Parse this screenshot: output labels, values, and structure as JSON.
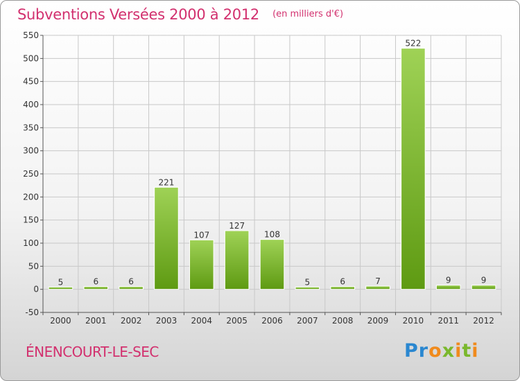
{
  "header": {
    "title": "Subventions Versées 2000 à 2012",
    "unit": "(en milliers d'€)"
  },
  "footer": {
    "commune": "ÉNENCOURT-LE-SEC",
    "logo": "Proxiti"
  },
  "colors": {
    "title": "#d2306e",
    "bar_light": "#9fd256",
    "bar_dark": "#5e9a12",
    "grid": "#c8c8c8"
  },
  "chart_data": {
    "type": "bar",
    "title": "Subventions Versées 2000 à 2012",
    "xlabel": "",
    "ylabel": "",
    "categories": [
      "2000",
      "2001",
      "2002",
      "2003",
      "2004",
      "2005",
      "2006",
      "2007",
      "2008",
      "2009",
      "2010",
      "2011",
      "2012"
    ],
    "values": [
      5,
      6,
      6,
      221,
      107,
      127,
      108,
      5,
      6,
      7,
      522,
      9,
      9
    ],
    "ylim": [
      -50,
      550
    ],
    "yticks": [
      -50,
      0,
      50,
      100,
      150,
      200,
      250,
      300,
      350,
      400,
      450,
      500,
      550
    ],
    "grid": true,
    "legend": "none"
  }
}
